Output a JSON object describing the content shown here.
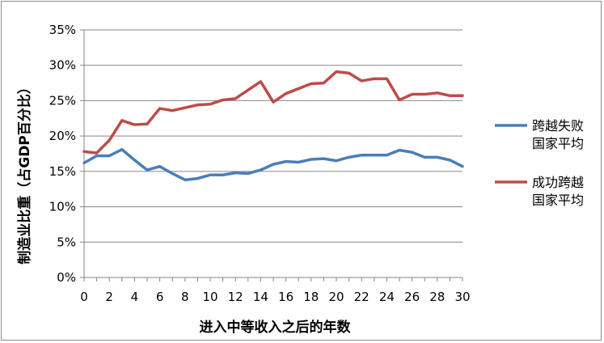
{
  "chart_data": {
    "type": "line",
    "xlabel": "进入中等收入之后的年数",
    "ylabel": "制造业比重（占GDP百分比）",
    "x": [
      0,
      1,
      2,
      3,
      4,
      5,
      6,
      7,
      8,
      9,
      10,
      11,
      12,
      13,
      14,
      15,
      16,
      17,
      18,
      19,
      20,
      21,
      22,
      23,
      24,
      25,
      26,
      27,
      28,
      29,
      30
    ],
    "x_ticks": [
      "0",
      "2",
      "4",
      "6",
      "8",
      "10",
      "12",
      "14",
      "16",
      "18",
      "20",
      "22",
      "24",
      "26",
      "28",
      "30"
    ],
    "y_ticks": [
      "0%",
      "5%",
      "10%",
      "15%",
      "20%",
      "25%",
      "30%",
      "35%"
    ],
    "ylim": [
      0,
      35
    ],
    "xlim": [
      0,
      30
    ],
    "grid": "horizontal",
    "legend_position": "right",
    "series": [
      {
        "name": "跨越失败国家平均",
        "name_lines": [
          "跨越失败",
          "国家平均"
        ],
        "color": "#4a7ebb",
        "values": [
          16.2,
          17.2,
          17.2,
          18.1,
          16.6,
          15.2,
          15.7,
          14.7,
          13.8,
          14.0,
          14.5,
          14.5,
          14.8,
          14.7,
          15.2,
          16.0,
          16.4,
          16.3,
          16.7,
          16.8,
          16.5,
          17.0,
          17.3,
          17.3,
          17.3,
          18.0,
          17.7,
          17.0,
          17.0,
          16.6,
          15.7
        ]
      },
      {
        "name": "成功跨越国家平均",
        "name_lines": [
          "成功跨越",
          "国家平均"
        ],
        "color": "#be4b48",
        "values": [
          17.8,
          17.6,
          19.4,
          22.2,
          21.6,
          21.7,
          23.9,
          23.6,
          24.0,
          24.4,
          24.5,
          25.1,
          25.3,
          26.5,
          27.7,
          24.8,
          26.0,
          26.7,
          27.4,
          27.5,
          29.1,
          28.9,
          27.8,
          28.1,
          28.1,
          25.1,
          25.9,
          25.9,
          26.1,
          25.7,
          25.7
        ]
      }
    ]
  }
}
